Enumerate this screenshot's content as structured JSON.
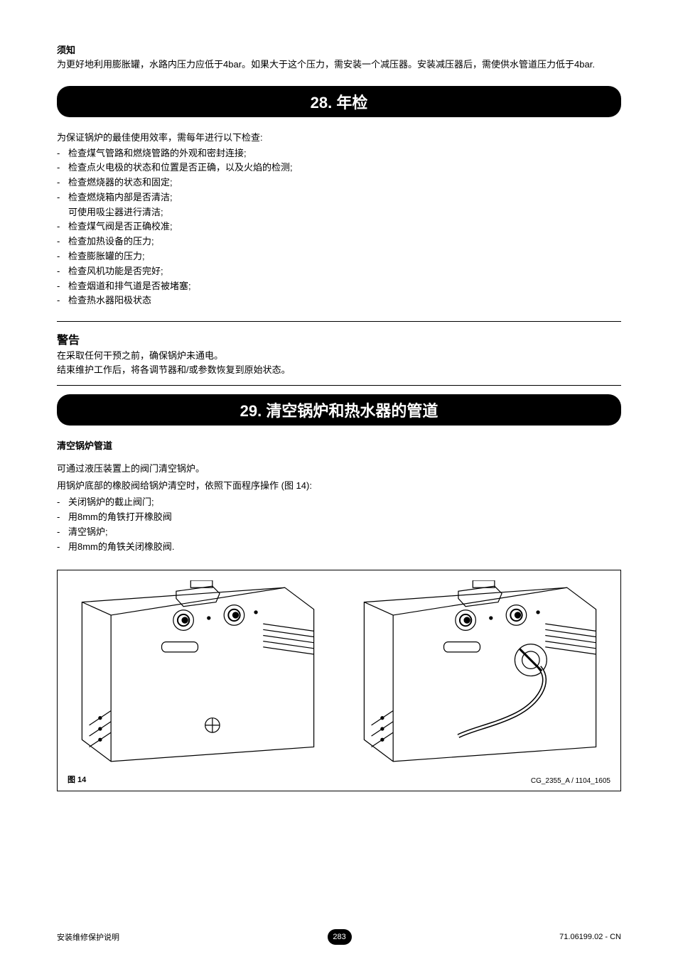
{
  "notice": {
    "label": "须知",
    "text": "为更好地利用膨胀罐，水路内压力应低于4bar。如果大于这个压力，需安装一个减压器。安装减压器后，需使供水管道压力低于4bar."
  },
  "section28": {
    "title": "28. 年检",
    "intro": "为保证锅炉的最佳使用效率，需每年进行以下检查:",
    "items": [
      "检查煤气管路和燃烧管路的外观和密封连接;",
      "检查点火电极的状态和位置是否正确，以及火焰的检测;",
      "检查燃烧器的状态和固定;",
      "检查燃烧箱内部是否清洁;",
      "检查煤气阀是否正确校准;",
      "检查加热设备的压力;",
      "检查膨胀罐的压力;",
      "检查风机功能是否完好;",
      "检查烟道和排气道是否被堵塞;",
      "检查热水器阳极状态"
    ],
    "subline_after_index": 3,
    "subline": "可使用吸尘器进行清洁;"
  },
  "warning": {
    "label": "警告",
    "line1": "在采取任何干预之前，确保锅炉未通电。",
    "line2": "结束维护工作后，将各调节器和/或参数恢复到原始状态。"
  },
  "section29": {
    "title": "29. 清空锅炉和热水器的管道",
    "subheading": "清空锅炉管道",
    "p1": "可通过液压装置上的阀门清空锅炉。",
    "p2": "用锅炉底部的橡胶阀给锅炉清空时，依照下面程序操作 (图 14):",
    "steps": [
      "关闭锅炉的截止阀门;",
      "用8mm的角铁打开橡胶阀",
      "清空锅炉;",
      "用8mm的角铁关闭橡胶阀."
    ]
  },
  "figure": {
    "label": "图 14",
    "code": "CG_2355_A / 1104_1605"
  },
  "footer": {
    "left": "安装维修保护说明",
    "page": "283",
    "right": "71.06199.02 - CN"
  }
}
